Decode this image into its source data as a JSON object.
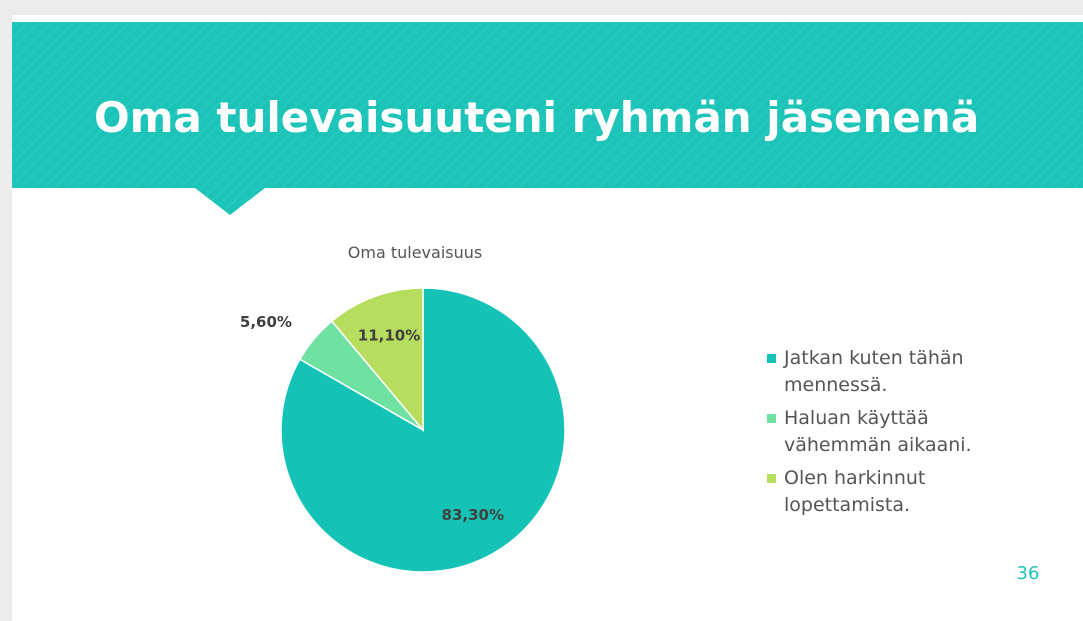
{
  "slide": {
    "title": "Oma tulevaisuuteni ryhmän jäsenenä",
    "page_number": "36"
  },
  "chart_data": {
    "type": "pie",
    "title": "Oma tulevaisuus",
    "categories": [
      "Jatkan kuten tähän mennessä.",
      "Haluan käyttää vähemmän aikaani.",
      "Olen harkinnut lopettamista."
    ],
    "values": [
      83.3,
      5.6,
      11.1
    ],
    "value_labels": [
      "83,30%",
      "5,60%",
      "11,10%"
    ],
    "colors": [
      "#14c3b6",
      "#6fe2a2",
      "#b6dd5e"
    ],
    "legend": "right"
  }
}
